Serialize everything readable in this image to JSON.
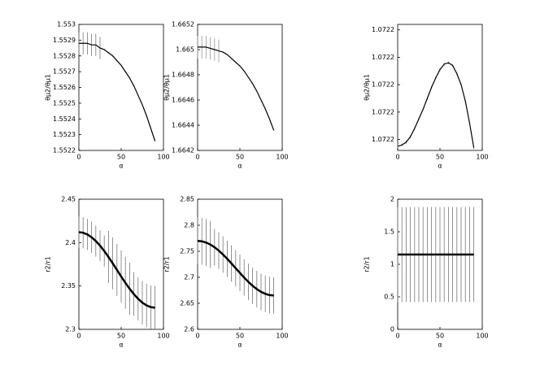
{
  "chart_data": [
    {
      "type": "errorbar",
      "xlabel": "α",
      "ylabel": "θμ2/θμ1",
      "line_color": "#000000",
      "error_color": "#777777",
      "x": [
        0,
        5,
        10,
        15,
        20,
        25,
        30,
        35,
        40,
        45,
        50,
        55,
        60,
        65,
        70,
        75,
        80,
        85,
        90
      ],
      "values": [
        1.55288,
        1.55288,
        1.55288,
        1.55287,
        1.55287,
        1.55285,
        1.55284,
        1.55282,
        1.5528,
        1.55277,
        1.55274,
        1.5527,
        1.55266,
        1.55261,
        1.55255,
        1.55249,
        1.55242,
        1.55234,
        1.55226
      ],
      "errors": [
        7e-05,
        7e-05,
        7e-05,
        7e-05,
        7e-05,
        7e-05,
        5e-06,
        5e-06,
        5e-06,
        5e-06,
        5e-06,
        5e-06,
        5e-06,
        5e-06,
        5e-06,
        5e-06,
        5e-06,
        5e-06,
        5e-06
      ],
      "xlim": [
        0,
        100
      ],
      "xticks": [
        0,
        50,
        100
      ],
      "ylim": [
        1.5522,
        1.553
      ],
      "yticks": [
        1.5522,
        1.5523,
        1.5524,
        1.5525,
        1.5526,
        1.5527,
        1.5528,
        1.5529,
        1.553
      ]
    },
    {
      "type": "errorbar",
      "xlabel": "α",
      "ylabel": "θμ2/θμ1",
      "line_color": "#000000",
      "error_color": "#999999",
      "x": [
        0,
        5,
        10,
        15,
        20,
        25,
        30,
        35,
        40,
        45,
        50,
        55,
        60,
        65,
        70,
        75,
        80,
        85,
        90
      ],
      "values": [
        1.66502,
        1.66502,
        1.66502,
        1.66501,
        1.665,
        1.66499,
        1.66498,
        1.66496,
        1.66493,
        1.6649,
        1.66487,
        1.66483,
        1.66478,
        1.66473,
        1.66467,
        1.6646,
        1.66453,
        1.66445,
        1.66436
      ],
      "errors": [
        9e-05,
        9e-05,
        9e-05,
        9e-05,
        9e-05,
        9e-05,
        5e-06,
        5e-06,
        5e-06,
        5e-06,
        5e-06,
        5e-06,
        5e-06,
        5e-06,
        5e-06,
        5e-06,
        5e-06,
        5e-06,
        5e-06
      ],
      "xlim": [
        0,
        100
      ],
      "xticks": [
        0,
        50,
        100
      ],
      "ylim": [
        1.6642,
        1.6652
      ],
      "yticks": [
        1.6642,
        1.6644,
        1.6646,
        1.6648,
        1.665,
        1.6652
      ]
    },
    {
      "type": "errorbar",
      "xlabel": "α",
      "ylabel": "θμ2/θμ1",
      "line_color": "#000000",
      "error_color": "#777777",
      "x": [
        0,
        5,
        10,
        15,
        20,
        25,
        30,
        35,
        40,
        45,
        50,
        55,
        60,
        65,
        70,
        75,
        80,
        85,
        90
      ],
      "values": [
        1.0721675,
        1.072168,
        1.072169,
        1.072171,
        1.072174,
        1.0721775,
        1.072181,
        1.072185,
        1.072189,
        1.0721925,
        1.0721955,
        1.0721975,
        1.072198,
        1.072197,
        1.072194,
        1.07219,
        1.072184,
        1.072176,
        1.072167
      ],
      "errors": [
        5e-07,
        5e-07,
        5e-07,
        5e-07,
        5e-07,
        5e-07,
        5e-07,
        5e-07,
        5e-07,
        5e-07,
        5e-07,
        5e-07,
        5e-07,
        5e-07,
        5e-07,
        5e-07,
        5e-07,
        5e-07,
        5e-07
      ],
      "xlim": [
        0,
        100
      ],
      "xticks": [
        0,
        50,
        100
      ],
      "ylim": [
        1.072166,
        1.072212
      ],
      "yticks": [
        {
          "value": 1.07217,
          "label": "1.0722"
        },
        {
          "value": 1.07218,
          "label": "1.0722"
        },
        {
          "value": 1.07219,
          "label": "1.0722"
        },
        {
          "value": 1.0722,
          "label": "1.0722"
        },
        {
          "value": 1.07221,
          "label": "1.0722"
        }
      ]
    },
    {
      "type": "errorbar",
      "xlabel": "α",
      "ylabel": "r2/r1",
      "line_color": "#000000",
      "error_color": "#777777",
      "x": [
        0,
        5,
        10,
        15,
        20,
        25,
        30,
        35,
        40,
        45,
        50,
        55,
        60,
        65,
        70,
        75,
        80,
        85,
        90
      ],
      "values": [
        2.412,
        2.4114,
        2.4094,
        2.4062,
        2.4018,
        2.3965,
        2.3903,
        2.3834,
        2.3761,
        2.3685,
        2.3609,
        2.3536,
        2.3468,
        2.3406,
        2.3352,
        2.3308,
        2.3276,
        2.3256,
        2.325
      ],
      "errors": [
        0.018,
        0.018,
        0.018,
        0.018,
        0.018,
        0.018,
        0.018,
        0.03,
        0.03,
        0.03,
        0.03,
        0.03,
        0.03,
        0.025,
        0.025,
        0.025,
        0.025,
        0.025,
        0.025
      ],
      "xlim": [
        0,
        100
      ],
      "xticks": [
        0,
        50,
        100
      ],
      "ylim": [
        2.3,
        2.45
      ],
      "yticks": [
        2.3,
        2.35,
        2.4,
        2.45
      ]
    },
    {
      "type": "errorbar",
      "xlabel": "α",
      "ylabel": "r2/r1",
      "line_color": "#000000",
      "error_color": "#777777",
      "x": [
        0,
        5,
        10,
        15,
        20,
        25,
        30,
        35,
        40,
        45,
        50,
        55,
        60,
        65,
        70,
        75,
        80,
        85,
        90
      ],
      "values": [
        2.77,
        2.7692,
        2.7668,
        2.763,
        2.7577,
        2.7513,
        2.7438,
        2.7355,
        2.7266,
        2.7175,
        2.7084,
        2.6995,
        2.6912,
        2.6837,
        2.6773,
        2.672,
        2.6682,
        2.6658,
        2.665
      ],
      "errors": [
        0.045,
        0.045,
        0.045,
        0.045,
        0.035,
        0.035,
        0.035,
        0.035,
        0.035,
        0.035,
        0.035,
        0.035,
        0.035,
        0.035,
        0.035,
        0.035,
        0.035,
        0.035,
        0.035
      ],
      "xlim": [
        0,
        100
      ],
      "xticks": [
        0,
        50,
        100
      ],
      "ylim": [
        2.6,
        2.85
      ],
      "yticks": [
        2.6,
        2.65,
        2.7,
        2.75,
        2.8,
        2.85
      ]
    },
    {
      "type": "errorbar",
      "xlabel": "α",
      "ylabel": "r2/r1",
      "line_color": "#000000",
      "error_color": "#777777",
      "x": [
        0,
        5,
        10,
        15,
        20,
        25,
        30,
        35,
        40,
        45,
        50,
        55,
        60,
        65,
        70,
        75,
        80,
        85,
        90
      ],
      "values": [
        1.15,
        1.15,
        1.15,
        1.15,
        1.15,
        1.15,
        1.15,
        1.15,
        1.15,
        1.15,
        1.15,
        1.15,
        1.15,
        1.15,
        1.15,
        1.15,
        1.15,
        1.15,
        1.15
      ],
      "errors": [
        0.73,
        0.73,
        0.73,
        0.73,
        0.73,
        0.73,
        0.73,
        0.73,
        0.73,
        0.73,
        0.73,
        0.73,
        0.73,
        0.73,
        0.73,
        0.73,
        0.73,
        0.73,
        0.73
      ],
      "xlim": [
        0,
        100
      ],
      "xticks": [
        0,
        50,
        100
      ],
      "ylim": [
        0,
        2
      ],
      "yticks": [
        0,
        0.5,
        1,
        1.5,
        2
      ]
    }
  ]
}
